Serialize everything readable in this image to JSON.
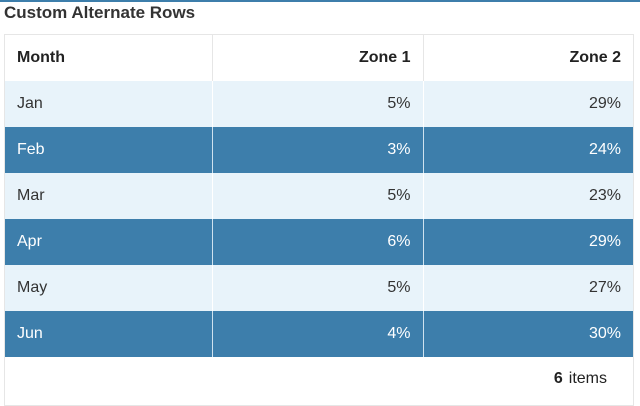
{
  "title": "Custom Alternate Rows",
  "colors": {
    "accent": "#3d7eab",
    "row_light": "#e8f3fa",
    "row_dark": "#3d7eab",
    "row_dark_text": "#ffffff"
  },
  "table": {
    "headers": [
      "Month",
      "Zone 1",
      "Zone 2"
    ],
    "rows": [
      {
        "month": "Jan",
        "zone1": "5%",
        "zone2": "29%"
      },
      {
        "month": "Feb",
        "zone1": "3%",
        "zone2": "24%"
      },
      {
        "month": "Mar",
        "zone1": "5%",
        "zone2": "23%"
      },
      {
        "month": "Apr",
        "zone1": "6%",
        "zone2": "29%"
      },
      {
        "month": "May",
        "zone1": "5%",
        "zone2": "27%"
      },
      {
        "month": "Jun",
        "zone1": "4%",
        "zone2": "30%"
      }
    ]
  },
  "footer": {
    "count": "6",
    "items_label": "items"
  }
}
